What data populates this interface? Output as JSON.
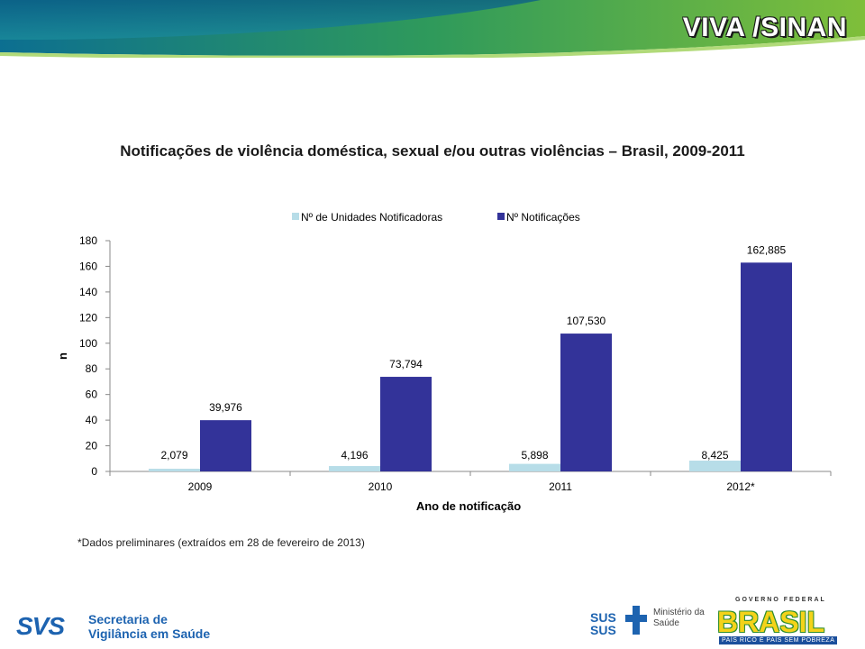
{
  "header": {
    "title": "VIVA /SINAN"
  },
  "chart_data": {
    "type": "bar",
    "title": "Notificações de violência doméstica, sexual e/ou outras violências – Brasil, 2009-2011",
    "xlabel": "Ano de notificação",
    "ylabel": "n",
    "ylim": [
      0,
      180
    ],
    "yticks": [
      "0",
      "20",
      "40",
      "60",
      "80",
      "100",
      "120",
      "140",
      "160",
      "180"
    ],
    "categories": [
      "2009",
      "2010",
      "2011",
      "2012*"
    ],
    "legend_position": "top",
    "series": [
      {
        "name": "Nº de Unidades Notificadoras",
        "values": [
          2.079,
          4.196,
          5.898,
          8.425
        ],
        "labels": [
          "2,079",
          "4,196",
          "5,898",
          "8,425"
        ],
        "color": "#b7dde8"
      },
      {
        "name": "Nº Notificações",
        "values": [
          39.976,
          73.794,
          107.53,
          162.885
        ],
        "labels": [
          "39,976",
          "73,794",
          "107,530",
          "162,885"
        ],
        "color": "#333399"
      }
    ]
  },
  "footnote": "*Dados preliminares (extraídos em 28 de fevereiro de 2013)",
  "footer": {
    "svs_mark": "SVS",
    "svs_line1": "Secretaria de",
    "svs_line2": "Vigilância em Saúde",
    "sus_mark": "SUS",
    "ms_line1": "Ministério da",
    "ms_line2": "Saúde",
    "gov_label": "GOVERNO FEDERAL",
    "brasil_label": "BRASIL",
    "brasil_tagline": "PAÍS RICO É PAÍS SEM POBREZA"
  }
}
